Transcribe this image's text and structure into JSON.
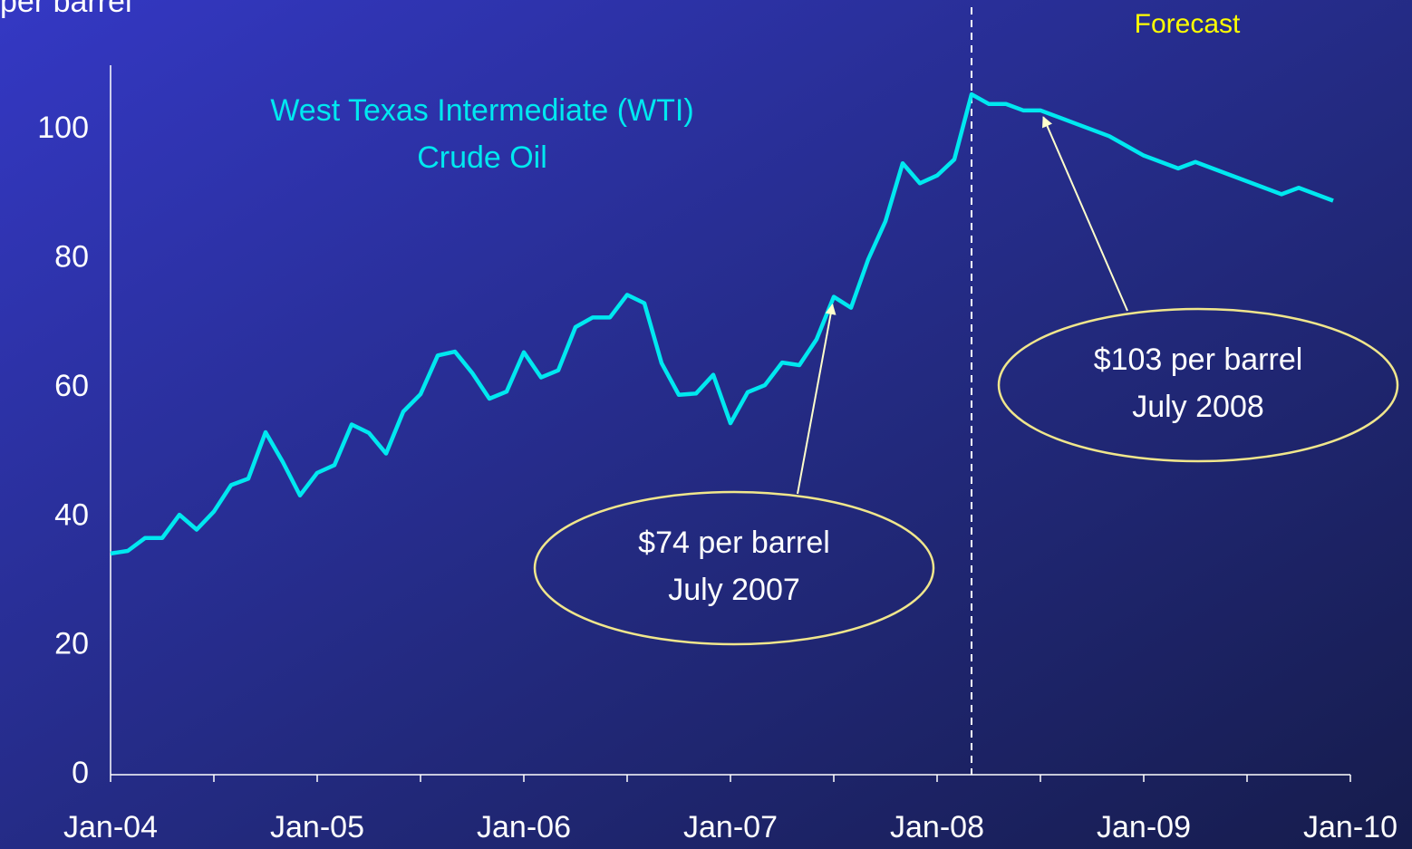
{
  "chart_data": {
    "type": "line",
    "y_axis_label": "per barrel",
    "x": [
      "2004-01",
      "2004-02",
      "2004-03",
      "2004-04",
      "2004-05",
      "2004-06",
      "2004-07",
      "2004-08",
      "2004-09",
      "2004-10",
      "2004-11",
      "2004-12",
      "2005-01",
      "2005-02",
      "2005-03",
      "2005-04",
      "2005-05",
      "2005-06",
      "2005-07",
      "2005-08",
      "2005-09",
      "2005-10",
      "2005-11",
      "2005-12",
      "2006-01",
      "2006-02",
      "2006-03",
      "2006-04",
      "2006-05",
      "2006-06",
      "2006-07",
      "2006-08",
      "2006-09",
      "2006-10",
      "2006-11",
      "2006-12",
      "2007-01",
      "2007-02",
      "2007-03",
      "2007-04",
      "2007-05",
      "2007-06",
      "2007-07",
      "2007-08",
      "2007-09",
      "2007-10",
      "2007-11",
      "2007-12",
      "2008-01",
      "2008-02",
      "2008-03",
      "2008-04",
      "2008-05",
      "2008-06",
      "2008-07",
      "2008-08",
      "2008-09",
      "2008-10",
      "2008-11",
      "2008-12",
      "2009-01",
      "2009-02",
      "2009-03",
      "2009-04",
      "2009-05",
      "2009-06",
      "2009-07",
      "2009-08",
      "2009-09",
      "2009-10",
      "2009-11",
      "2009-12"
    ],
    "series": [
      {
        "name": "West Texas Intermediate (WTI) Crude Oil",
        "color": "#00e8f0",
        "values": [
          34.3,
          34.7,
          36.7,
          36.7,
          40.3,
          38.0,
          40.8,
          44.9,
          45.9,
          53.1,
          48.5,
          43.3,
          46.8,
          48.0,
          54.3,
          53.0,
          49.8,
          56.3,
          59.0,
          65.0,
          65.6,
          62.3,
          58.3,
          59.4,
          65.5,
          61.6,
          62.7,
          69.4,
          70.9,
          70.9,
          74.4,
          73.1,
          63.8,
          58.9,
          59.1,
          62.0,
          54.5,
          59.3,
          60.4,
          63.9,
          63.5,
          67.5,
          74.1,
          72.4,
          79.9,
          85.8,
          94.8,
          91.7,
          92.9,
          95.4,
          105.5,
          104,
          104,
          103,
          103,
          102,
          101,
          100,
          99,
          97.5,
          96,
          95,
          94,
          95,
          94,
          93,
          92,
          91,
          90,
          91,
          90,
          89
        ]
      }
    ],
    "series_label_lines": [
      "West Texas Intermediate (WTI)",
      "Crude Oil"
    ],
    "xlim": [
      "2004-01",
      "2010-01"
    ],
    "xticks": [
      {
        "value": "2004-01",
        "label": "Jan-04"
      },
      {
        "value": "2005-01",
        "label": "Jan-05"
      },
      {
        "value": "2006-01",
        "label": "Jan-06"
      },
      {
        "value": "2007-01",
        "label": "Jan-07"
      },
      {
        "value": "2008-01",
        "label": "Jan-08"
      },
      {
        "value": "2009-01",
        "label": "Jan-09"
      },
      {
        "value": "2010-01",
        "label": "Jan-10"
      }
    ],
    "xminor_ticks": [
      "2004-07",
      "2005-07",
      "2006-07",
      "2007-07",
      "2008-07",
      "2009-07"
    ],
    "ylim": [
      0,
      110
    ],
    "yticks": [
      0,
      20,
      40,
      60,
      80,
      100
    ],
    "forecast_line": {
      "x": "2008-03",
      "label": "Forecast"
    },
    "annotations": [
      {
        "lines": [
          "$74 per barrel",
          "July 2007"
        ],
        "x": "2007-07",
        "y": 74
      },
      {
        "lines": [
          "$103 per barrel",
          "July 2008"
        ],
        "x": "2008-07",
        "y": 103
      }
    ]
  }
}
